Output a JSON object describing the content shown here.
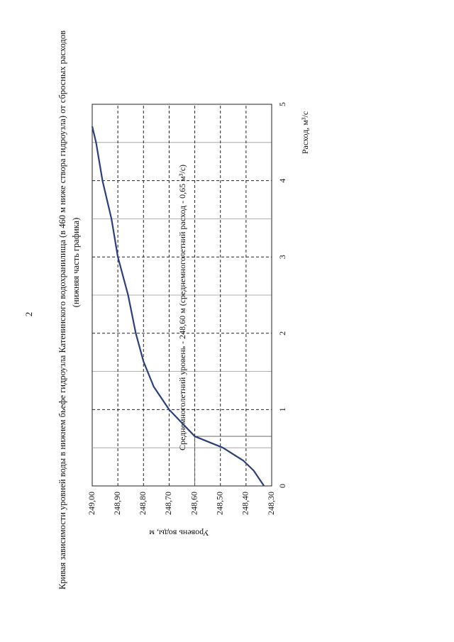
{
  "page_number": "2",
  "chart_data": {
    "type": "line",
    "title": "Кривая зависимости уровней воды в нижнем бьефе гидроузла Катенинского водохранилища (в 460 м ниже створа гидроузла) от сбросных расходов",
    "subtitle": "(нижняя часть графика)",
    "xlabel": "Расход, м³/с",
    "ylabel": "Уровень воды, м",
    "annotation": "Среднемноголетний уровень - 248,60 м (среднемноголетний расход - 0,65 м³/с)",
    "reference": {
      "x": 0.65,
      "y": 248.6
    },
    "x": [
      0,
      0.2,
      0.33,
      0.5,
      0.65,
      1.0,
      1.3,
      1.63,
      2,
      2.5,
      3,
      3.5,
      4,
      4.5,
      4.71
    ],
    "series": [
      {
        "name": "Уровень воды",
        "color": "#2b3f7a",
        "values": [
          248.33,
          248.37,
          248.41,
          248.49,
          248.6,
          248.7,
          248.76,
          248.8,
          248.83,
          248.86,
          248.9,
          248.925,
          248.96,
          248.985,
          249.0
        ]
      }
    ],
    "xlim": [
      0,
      5
    ],
    "xticks": [
      0,
      1,
      2,
      3,
      4,
      5
    ],
    "xminor": [
      0.5,
      1.5,
      2.5,
      3.5,
      4.5
    ],
    "ylim": [
      248.3,
      249.0
    ],
    "yticks": [
      {
        "value": 249.0,
        "label": "249,00"
      },
      {
        "value": 248.9,
        "label": "248,90"
      },
      {
        "value": 248.8,
        "label": "248,80"
      },
      {
        "value": 248.7,
        "label": "248,70"
      },
      {
        "value": 248.6,
        "label": "248,60"
      },
      {
        "value": 248.5,
        "label": "248,50"
      },
      {
        "value": 248.4,
        "label": "248,40"
      },
      {
        "value": 248.3,
        "label": "248,30"
      }
    ],
    "grid": true
  }
}
